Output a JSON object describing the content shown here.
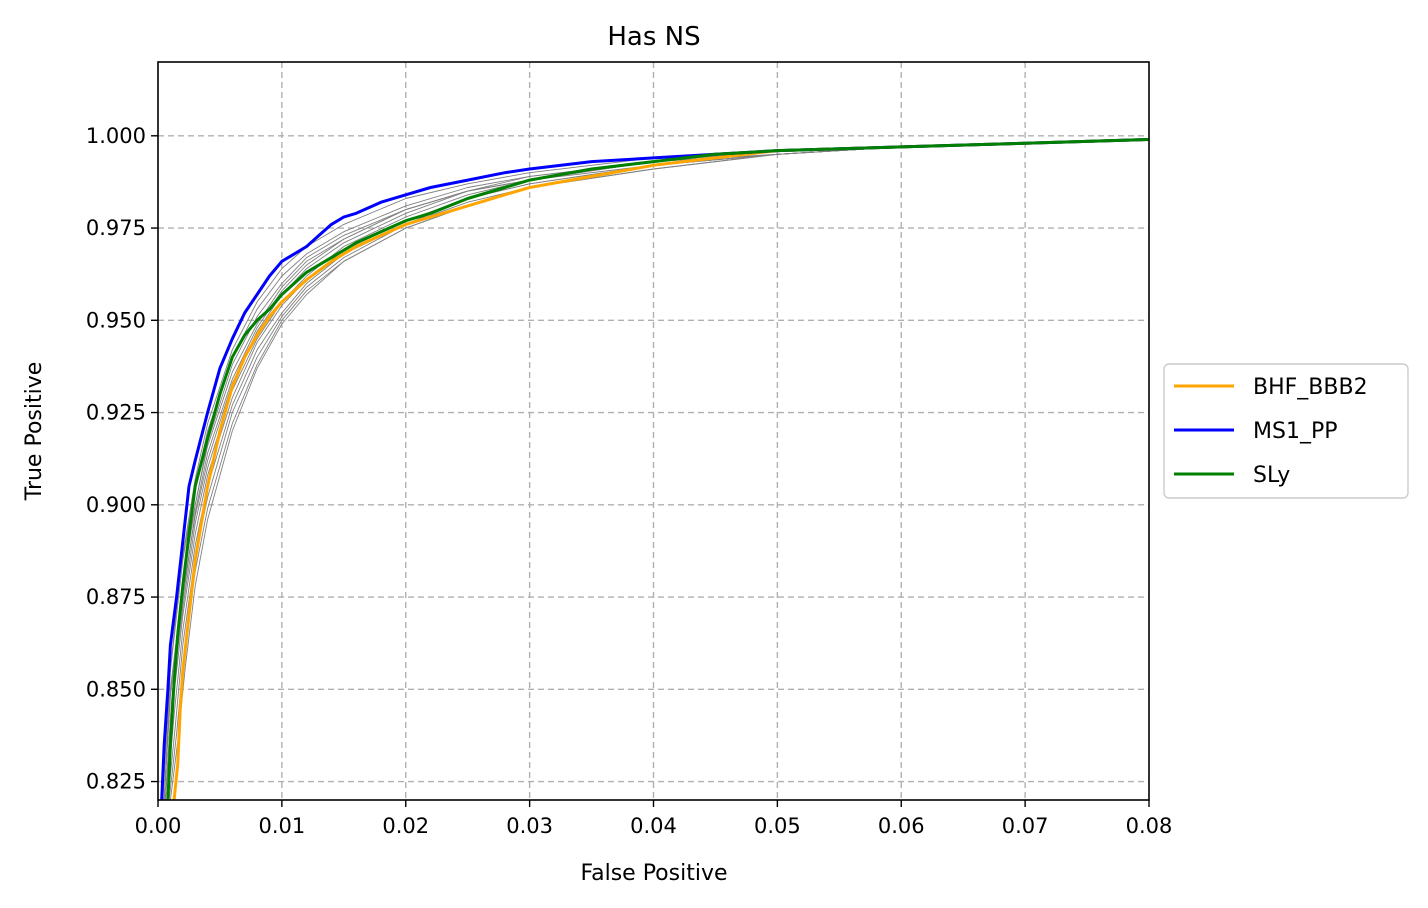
{
  "chart_data": {
    "type": "line",
    "title": "Has NS",
    "xlabel": "False Positive",
    "ylabel": "True Positive",
    "xlim": [
      0.0,
      0.08
    ],
    "ylim": [
      0.82,
      1.02
    ],
    "xticks": [
      "0.00",
      "0.01",
      "0.02",
      "0.03",
      "0.04",
      "0.05",
      "0.06",
      "0.07",
      "0.08"
    ],
    "yticks": [
      "0.825",
      "0.850",
      "0.875",
      "0.900",
      "0.925",
      "0.950",
      "0.975",
      "1.000"
    ],
    "grid": true,
    "legend_position": "right, outside the plot",
    "series": [
      {
        "name": "BHF_BBB2",
        "color": "#ffa500",
        "x": [
          0.0013,
          0.0016,
          0.0018,
          0.002,
          0.0025,
          0.003,
          0.0035,
          0.004,
          0.005,
          0.006,
          0.007,
          0.008,
          0.009,
          0.01,
          0.012,
          0.014,
          0.016,
          0.018,
          0.02,
          0.022,
          0.025,
          0.028,
          0.03,
          0.035,
          0.04,
          0.045,
          0.05,
          0.06,
          0.07,
          0.08
        ],
        "y": [
          0.82,
          0.83,
          0.845,
          0.855,
          0.87,
          0.885,
          0.895,
          0.905,
          0.92,
          0.932,
          0.94,
          0.946,
          0.951,
          0.955,
          0.961,
          0.966,
          0.97,
          0.973,
          0.976,
          0.978,
          0.981,
          0.984,
          0.986,
          0.989,
          0.992,
          0.994,
          0.996,
          0.997,
          0.998,
          0.999
        ]
      },
      {
        "name": "MS1_PP",
        "color": "#0000ff",
        "x": [
          0.0003,
          0.0005,
          0.0008,
          0.001,
          0.0015,
          0.002,
          0.0025,
          0.003,
          0.004,
          0.005,
          0.006,
          0.007,
          0.008,
          0.009,
          0.01,
          0.011,
          0.012,
          0.013,
          0.014,
          0.015,
          0.016,
          0.018,
          0.02,
          0.022,
          0.025,
          0.028,
          0.03,
          0.035,
          0.04,
          0.045,
          0.05,
          0.06,
          0.07,
          0.08
        ],
        "y": [
          0.82,
          0.835,
          0.85,
          0.862,
          0.875,
          0.89,
          0.905,
          0.912,
          0.925,
          0.937,
          0.945,
          0.952,
          0.957,
          0.962,
          0.966,
          0.968,
          0.97,
          0.973,
          0.976,
          0.978,
          0.979,
          0.982,
          0.984,
          0.986,
          0.988,
          0.99,
          0.991,
          0.993,
          0.994,
          0.995,
          0.996,
          0.997,
          0.998,
          0.999
        ]
      },
      {
        "name": "SLy",
        "color": "#008000",
        "x": [
          0.0008,
          0.001,
          0.0013,
          0.0016,
          0.002,
          0.0025,
          0.003,
          0.004,
          0.005,
          0.006,
          0.007,
          0.008,
          0.009,
          0.01,
          0.012,
          0.014,
          0.016,
          0.018,
          0.02,
          0.022,
          0.025,
          0.028,
          0.03,
          0.035,
          0.04,
          0.045,
          0.05,
          0.06,
          0.07,
          0.08
        ],
        "y": [
          0.82,
          0.835,
          0.852,
          0.865,
          0.878,
          0.892,
          0.905,
          0.918,
          0.93,
          0.94,
          0.946,
          0.95,
          0.953,
          0.957,
          0.963,
          0.967,
          0.971,
          0.974,
          0.977,
          0.979,
          0.983,
          0.986,
          0.988,
          0.991,
          0.993,
          0.995,
          0.996,
          0.997,
          0.998,
          0.999
        ]
      }
    ],
    "background_series_color": "#808080",
    "background_series": [
      {
        "x": [
          0.0005,
          0.001,
          0.002,
          0.003,
          0.004,
          0.006,
          0.008,
          0.01,
          0.012,
          0.015,
          0.02,
          0.025,
          0.03,
          0.04,
          0.05,
          0.06,
          0.08
        ],
        "y": [
          0.82,
          0.855,
          0.885,
          0.905,
          0.92,
          0.94,
          0.953,
          0.962,
          0.968,
          0.974,
          0.981,
          0.986,
          0.989,
          0.993,
          0.996,
          0.997,
          0.999
        ]
      },
      {
        "x": [
          0.0005,
          0.001,
          0.002,
          0.003,
          0.004,
          0.006,
          0.008,
          0.01,
          0.012,
          0.015,
          0.02,
          0.025,
          0.03,
          0.04,
          0.05,
          0.06,
          0.08
        ],
        "y": [
          0.82,
          0.848,
          0.88,
          0.9,
          0.916,
          0.936,
          0.949,
          0.959,
          0.966,
          0.972,
          0.98,
          0.985,
          0.988,
          0.993,
          0.996,
          0.997,
          0.999
        ]
      },
      {
        "x": [
          0.0006,
          0.001,
          0.002,
          0.003,
          0.004,
          0.006,
          0.008,
          0.01,
          0.012,
          0.015,
          0.02,
          0.025,
          0.03,
          0.04,
          0.05,
          0.06,
          0.08
        ],
        "y": [
          0.82,
          0.842,
          0.876,
          0.897,
          0.912,
          0.933,
          0.947,
          0.957,
          0.964,
          0.971,
          0.979,
          0.985,
          0.988,
          0.993,
          0.995,
          0.997,
          0.999
        ]
      },
      {
        "x": [
          0.0006,
          0.0012,
          0.002,
          0.003,
          0.004,
          0.006,
          0.008,
          0.01,
          0.012,
          0.015,
          0.02,
          0.025,
          0.03,
          0.04,
          0.05,
          0.06,
          0.08
        ],
        "y": [
          0.82,
          0.85,
          0.872,
          0.895,
          0.91,
          0.931,
          0.945,
          0.955,
          0.962,
          0.97,
          0.978,
          0.984,
          0.988,
          0.992,
          0.995,
          0.997,
          0.999
        ]
      },
      {
        "x": [
          0.0007,
          0.0012,
          0.002,
          0.003,
          0.004,
          0.006,
          0.008,
          0.01,
          0.012,
          0.015,
          0.02,
          0.025,
          0.03,
          0.04,
          0.05,
          0.06,
          0.08
        ],
        "y": [
          0.82,
          0.846,
          0.87,
          0.892,
          0.908,
          0.929,
          0.944,
          0.954,
          0.961,
          0.969,
          0.977,
          0.983,
          0.987,
          0.992,
          0.995,
          0.997,
          0.999
        ]
      },
      {
        "x": [
          0.0007,
          0.0013,
          0.002,
          0.003,
          0.004,
          0.006,
          0.008,
          0.01,
          0.012,
          0.015,
          0.02,
          0.025,
          0.03,
          0.04,
          0.05,
          0.06,
          0.08
        ],
        "y": [
          0.82,
          0.843,
          0.866,
          0.889,
          0.905,
          0.927,
          0.942,
          0.952,
          0.96,
          0.968,
          0.976,
          0.983,
          0.987,
          0.992,
          0.995,
          0.997,
          0.999
        ]
      },
      {
        "x": [
          0.0008,
          0.0014,
          0.002,
          0.003,
          0.004,
          0.006,
          0.008,
          0.01,
          0.012,
          0.015,
          0.02,
          0.025,
          0.03,
          0.04,
          0.05,
          0.06,
          0.08
        ],
        "y": [
          0.82,
          0.84,
          0.862,
          0.886,
          0.902,
          0.925,
          0.94,
          0.951,
          0.959,
          0.967,
          0.976,
          0.982,
          0.986,
          0.992,
          0.995,
          0.997,
          0.999
        ]
      },
      {
        "x": [
          0.0009,
          0.0015,
          0.002,
          0.003,
          0.004,
          0.006,
          0.008,
          0.01,
          0.012,
          0.015,
          0.02,
          0.025,
          0.03,
          0.04,
          0.05,
          0.06,
          0.08
        ],
        "y": [
          0.82,
          0.838,
          0.856,
          0.882,
          0.899,
          0.922,
          0.938,
          0.95,
          0.958,
          0.966,
          0.975,
          0.981,
          0.986,
          0.991,
          0.995,
          0.997,
          0.999
        ]
      },
      {
        "x": [
          0.001,
          0.0016,
          0.0022,
          0.003,
          0.004,
          0.006,
          0.008,
          0.01,
          0.012,
          0.015,
          0.02,
          0.025,
          0.03,
          0.04,
          0.05,
          0.06,
          0.08
        ],
        "y": [
          0.82,
          0.836,
          0.856,
          0.878,
          0.896,
          0.92,
          0.937,
          0.949,
          0.957,
          0.966,
          0.975,
          0.981,
          0.986,
          0.991,
          0.995,
          0.997,
          0.999
        ]
      },
      {
        "x": [
          0.0004,
          0.0009,
          0.0018,
          0.003,
          0.004,
          0.006,
          0.008,
          0.01,
          0.012,
          0.015,
          0.02,
          0.025,
          0.03,
          0.04,
          0.05,
          0.06,
          0.08
        ],
        "y": [
          0.82,
          0.852,
          0.882,
          0.907,
          0.922,
          0.942,
          0.955,
          0.964,
          0.97,
          0.976,
          0.983,
          0.987,
          0.99,
          0.994,
          0.996,
          0.997,
          0.999
        ]
      },
      {
        "x": [
          0.0005,
          0.001,
          0.002,
          0.003,
          0.004,
          0.006,
          0.008,
          0.01,
          0.012,
          0.015,
          0.02,
          0.025,
          0.03,
          0.04,
          0.05,
          0.06,
          0.08
        ],
        "y": [
          0.82,
          0.85,
          0.878,
          0.9,
          0.917,
          0.938,
          0.951,
          0.96,
          0.967,
          0.973,
          0.98,
          0.985,
          0.989,
          0.993,
          0.996,
          0.997,
          0.999
        ]
      },
      {
        "x": [
          0.0006,
          0.0011,
          0.002,
          0.003,
          0.004,
          0.006,
          0.008,
          0.01,
          0.012,
          0.015,
          0.02,
          0.025,
          0.03,
          0.04,
          0.05,
          0.06,
          0.08
        ],
        "y": [
          0.82,
          0.847,
          0.874,
          0.898,
          0.914,
          0.934,
          0.948,
          0.958,
          0.965,
          0.972,
          0.98,
          0.985,
          0.988,
          0.993,
          0.995,
          0.997,
          0.999
        ]
      }
    ]
  }
}
